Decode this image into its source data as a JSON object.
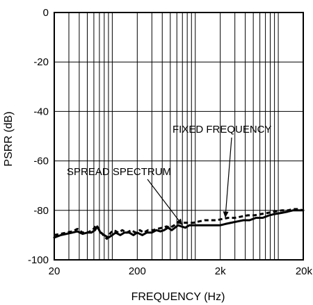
{
  "chart_data": {
    "type": "line",
    "xlabel": "FREQUENCY (Hz)",
    "ylabel": "PSRR (dB)",
    "x_scale": "log",
    "xlim": [
      20,
      20000
    ],
    "ylim": [
      -100,
      0
    ],
    "x_ticks": [
      {
        "value": 20,
        "label": "20"
      },
      {
        "value": 200,
        "label": "200"
      },
      {
        "value": 2000,
        "label": "2k"
      },
      {
        "value": 20000,
        "label": "20k"
      }
    ],
    "y_ticks": [
      {
        "value": 0,
        "label": "0"
      },
      {
        "value": -20,
        "label": "-20"
      },
      {
        "value": -40,
        "label": "-40"
      },
      {
        "value": -60,
        "label": "-60"
      },
      {
        "value": -80,
        "label": "-80"
      },
      {
        "value": -100,
        "label": "-100"
      }
    ],
    "grid": true,
    "series": [
      {
        "id": "spread",
        "style": "solid",
        "color": "#000000",
        "points": [
          [
            20,
            -91
          ],
          [
            24,
            -90
          ],
          [
            28,
            -89.5
          ],
          [
            33,
            -89
          ],
          [
            38,
            -88.5
          ],
          [
            44,
            -89.5
          ],
          [
            50,
            -89
          ],
          [
            56,
            -89
          ],
          [
            62,
            -88
          ],
          [
            66,
            -86.5
          ],
          [
            72,
            -89
          ],
          [
            80,
            -90
          ],
          [
            90,
            -91
          ],
          [
            100,
            -90
          ],
          [
            110,
            -89
          ],
          [
            125,
            -90
          ],
          [
            140,
            -89
          ],
          [
            160,
            -89
          ],
          [
            180,
            -90
          ],
          [
            200,
            -89
          ],
          [
            230,
            -90
          ],
          [
            260,
            -89
          ],
          [
            300,
            -89
          ],
          [
            340,
            -88
          ],
          [
            380,
            -88.5
          ],
          [
            420,
            -88
          ],
          [
            470,
            -87
          ],
          [
            520,
            -88
          ],
          [
            570,
            -87
          ],
          [
            620,
            -86
          ],
          [
            680,
            -86.5
          ],
          [
            760,
            -87
          ],
          [
            850,
            -86
          ],
          [
            950,
            -86
          ],
          [
            1100,
            -86
          ],
          [
            1300,
            -86
          ],
          [
            1500,
            -86
          ],
          [
            1700,
            -86
          ],
          [
            2000,
            -86
          ],
          [
            2300,
            -85.5
          ],
          [
            2700,
            -85
          ],
          [
            3200,
            -84.5
          ],
          [
            3800,
            -84
          ],
          [
            4500,
            -84
          ],
          [
            5400,
            -83
          ],
          [
            6500,
            -83
          ],
          [
            7800,
            -82
          ],
          [
            9000,
            -81.5
          ],
          [
            11000,
            -81
          ],
          [
            13000,
            -80.5
          ],
          [
            15000,
            -80
          ],
          [
            17500,
            -80
          ],
          [
            20000,
            -80
          ]
        ]
      },
      {
        "id": "fixed",
        "style": "dashed",
        "color": "#000000",
        "points": [
          [
            20,
            -90
          ],
          [
            24,
            -89.5
          ],
          [
            28,
            -89
          ],
          [
            33,
            -88.5
          ],
          [
            38,
            -87.5
          ],
          [
            44,
            -89
          ],
          [
            50,
            -89
          ],
          [
            58,
            -88
          ],
          [
            64,
            -86
          ],
          [
            70,
            -88
          ],
          [
            78,
            -90
          ],
          [
            86,
            -91.5
          ],
          [
            96,
            -89
          ],
          [
            105,
            -88
          ],
          [
            118,
            -89
          ],
          [
            132,
            -88
          ],
          [
            150,
            -89
          ],
          [
            170,
            -88
          ],
          [
            190,
            -89
          ],
          [
            215,
            -88
          ],
          [
            240,
            -89
          ],
          [
            270,
            -88
          ],
          [
            310,
            -88
          ],
          [
            350,
            -87.5
          ],
          [
            400,
            -87
          ],
          [
            450,
            -86.5
          ],
          [
            500,
            -87
          ],
          [
            560,
            -86
          ],
          [
            610,
            -85
          ],
          [
            680,
            -85
          ],
          [
            760,
            -85
          ],
          [
            850,
            -85
          ],
          [
            950,
            -85
          ],
          [
            1100,
            -84.5
          ],
          [
            1300,
            -84
          ],
          [
            1500,
            -84
          ],
          [
            1800,
            -84
          ],
          [
            2100,
            -83.5
          ],
          [
            2500,
            -83
          ],
          [
            3000,
            -83
          ],
          [
            3600,
            -82.5
          ],
          [
            4300,
            -82
          ],
          [
            5200,
            -82
          ],
          [
            6200,
            -81.5
          ],
          [
            7500,
            -81
          ],
          [
            9000,
            -80.5
          ],
          [
            11000,
            -80
          ],
          [
            13000,
            -80
          ],
          [
            15000,
            -79.5
          ],
          [
            17500,
            -79.5
          ],
          [
            20000,
            -80
          ]
        ]
      }
    ],
    "annotations": [
      {
        "id": "fixed-frequency",
        "text": "FIXED FREQUENCY",
        "target": [
          2300,
          -83
        ]
      },
      {
        "id": "spread-spectrum",
        "text": "SPREAD SPECTRUM",
        "target": [
          700,
          -86
        ]
      }
    ]
  }
}
